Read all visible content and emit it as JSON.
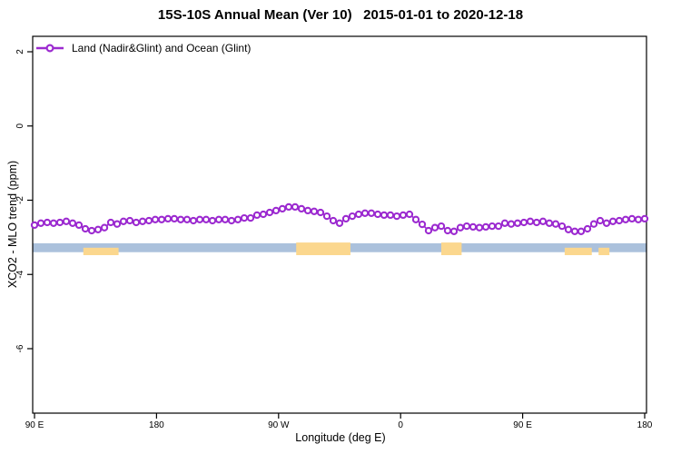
{
  "title": "15S-10S Annual Mean (Ver 10)   2015-01-01 to 2020-12-18",
  "legend": {
    "label": "Land (Nadir&Glint) and Ocean (Glint)",
    "marker": "open-circle-on-line",
    "color": "#9C2BD0",
    "position": "top-left"
  },
  "axes": {
    "x": {
      "label": "Longitude (deg E)",
      "ticks": [
        {
          "lon": 90,
          "label": "90 E"
        },
        {
          "lon": 180,
          "label": "180"
        },
        {
          "lon": 270,
          "label": "90 W"
        },
        {
          "lon": 360,
          "label": "0"
        },
        {
          "lon": 450,
          "label": "90 E"
        },
        {
          "lon": 540,
          "label": "180"
        }
      ]
    },
    "y": {
      "label": "XCO2 - MLO trend (ppm)",
      "ticks": [
        2,
        0,
        -2,
        -4,
        -6
      ]
    }
  },
  "chart_data": {
    "type": "line",
    "title": "15S-10S Annual Mean (Ver 10)   2015-01-01 to 2020-12-18",
    "xlabel": "Longitude (deg E)",
    "ylabel": "XCO2 - MLO trend (ppm)",
    "xlim": [
      90,
      540
    ],
    "ylim": [
      -7.7,
      2.45
    ],
    "grid": false,
    "x_lon": [
      90.0,
      94.69,
      99.38,
      104.06,
      108.75,
      113.44,
      118.13,
      122.81,
      127.5,
      132.19,
      136.88,
      141.56,
      146.25,
      150.94,
      155.63,
      160.31,
      165.0,
      169.69,
      174.38,
      179.06,
      183.75,
      188.44,
      193.13,
      197.81,
      202.5,
      207.19,
      211.88,
      216.56,
      221.25,
      225.94,
      230.63,
      235.31,
      240.0,
      244.69,
      249.38,
      254.06,
      258.75,
      263.44,
      268.13,
      272.81,
      277.5,
      282.19,
      286.88,
      291.56,
      296.25,
      300.94,
      305.63,
      310.31,
      315.0,
      319.69,
      324.38,
      329.06,
      333.75,
      338.44,
      343.13,
      347.81,
      352.5,
      357.19,
      361.88,
      366.56,
      371.25,
      375.94,
      380.63,
      385.31,
      390.0,
      394.69,
      399.38,
      404.06,
      408.75,
      413.44,
      418.13,
      422.81,
      427.5,
      432.19,
      436.88,
      441.56,
      446.25,
      450.94,
      455.63,
      460.31,
      465.0,
      469.69,
      474.38,
      479.06,
      483.75,
      488.44,
      493.13,
      497.81,
      502.5,
      507.19,
      511.88,
      516.56,
      521.25,
      525.94,
      530.63,
      535.31,
      540.0
    ],
    "series": [
      {
        "name": "Land (Nadir&Glint) and Ocean (Glint)",
        "color": "#9C2BD0",
        "values": [
          -2.67,
          -2.62,
          -2.6,
          -2.62,
          -2.6,
          -2.57,
          -2.62,
          -2.67,
          -2.77,
          -2.82,
          -2.79,
          -2.74,
          -2.6,
          -2.64,
          -2.57,
          -2.55,
          -2.6,
          -2.57,
          -2.55,
          -2.52,
          -2.52,
          -2.5,
          -2.5,
          -2.52,
          -2.52,
          -2.55,
          -2.52,
          -2.52,
          -2.55,
          -2.52,
          -2.52,
          -2.55,
          -2.52,
          -2.48,
          -2.48,
          -2.4,
          -2.38,
          -2.33,
          -2.28,
          -2.23,
          -2.18,
          -2.18,
          -2.23,
          -2.28,
          -2.3,
          -2.33,
          -2.43,
          -2.55,
          -2.62,
          -2.5,
          -2.43,
          -2.38,
          -2.35,
          -2.35,
          -2.38,
          -2.4,
          -2.4,
          -2.43,
          -2.4,
          -2.38,
          -2.52,
          -2.65,
          -2.82,
          -2.74,
          -2.7,
          -2.82,
          -2.84,
          -2.74,
          -2.7,
          -2.72,
          -2.74,
          -2.72,
          -2.7,
          -2.7,
          -2.62,
          -2.64,
          -2.62,
          -2.6,
          -2.57,
          -2.6,
          -2.57,
          -2.62,
          -2.64,
          -2.7,
          -2.79,
          -2.84,
          -2.84,
          -2.77,
          -2.64,
          -2.55,
          -2.62,
          -2.57,
          -2.55,
          -2.52,
          -2.5,
          -2.52,
          -2.5
        ]
      }
    ],
    "surface_band": {
      "ocean_color": "#ABC1DC",
      "land_color": "#FBD78E",
      "ocean_lon_range": [
        88.7,
        541.3
      ],
      "ocean_value_range": [
        -3.16,
        -3.4
      ],
      "land_full_value_range": [
        -3.14,
        -3.48
      ],
      "land_partial_value_range": [
        -3.28,
        -3.48
      ],
      "land_segments": [
        {
          "lon_range": [
            126,
            152
          ],
          "partial": true
        },
        {
          "lon_range": [
            283,
            323
          ],
          "partial": false
        },
        {
          "lon_range": [
            390,
            405
          ],
          "partial": false
        },
        {
          "lon_range": [
            481,
            501
          ],
          "partial": true
        },
        {
          "lon_range": [
            506,
            514
          ],
          "partial": true
        }
      ]
    }
  }
}
